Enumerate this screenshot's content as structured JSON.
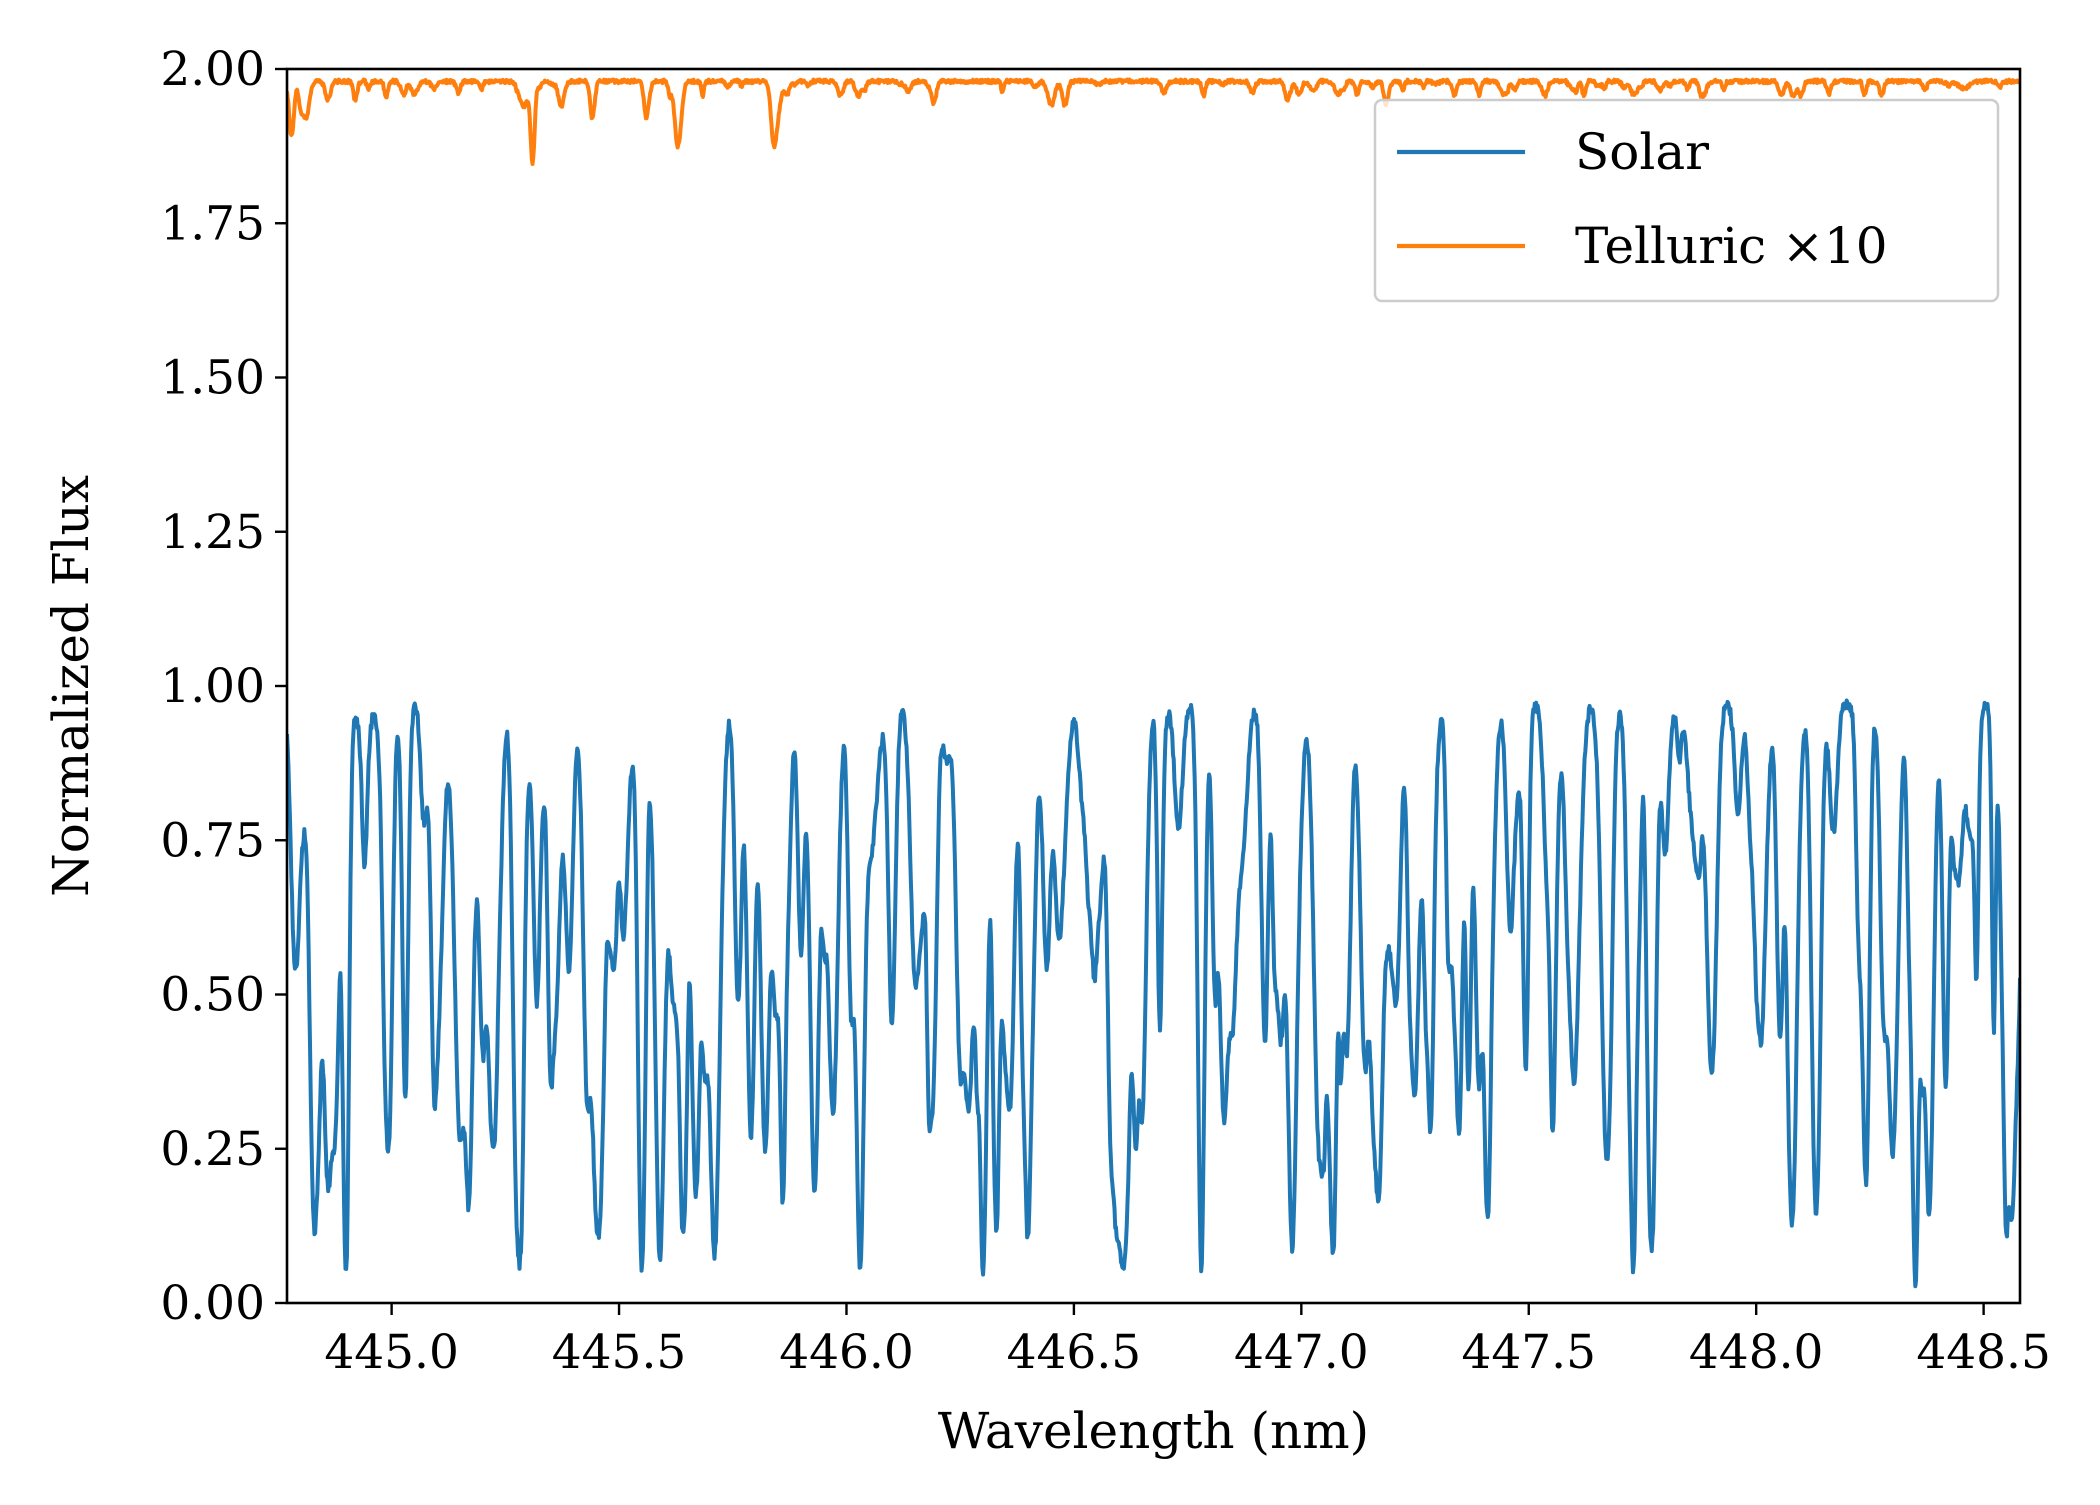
{
  "chart_data": {
    "type": "line",
    "title": "",
    "xlabel": "Wavelength (nm)",
    "ylabel": "Normalized Flux",
    "xlim": [
      444.77,
      448.58
    ],
    "ylim": [
      0.0,
      2.0
    ],
    "xticks": [
      445.0,
      445.5,
      446.0,
      446.5,
      447.0,
      447.5,
      448.0,
      448.5
    ],
    "xtick_labels": [
      "445.0",
      "445.5",
      "446.0",
      "446.5",
      "447.0",
      "447.5",
      "448.0",
      "448.5"
    ],
    "yticks": [
      0.0,
      0.25,
      0.5,
      0.75,
      1.0,
      1.25,
      1.5,
      1.75,
      2.0
    ],
    "ytick_labels": [
      "0.00",
      "0.25",
      "0.50",
      "0.75",
      "1.00",
      "1.25",
      "1.50",
      "1.75",
      "2.00"
    ],
    "grid": false,
    "legend_position": "top-right",
    "series": [
      {
        "name": "Solar",
        "color": "#1f77b4",
        "continuum": 0.97,
        "absorption_lines": [
          [
            444.79,
            0.8
          ],
          [
            444.8,
            0.78
          ],
          [
            444.83,
            0.23
          ],
          [
            444.86,
            0.21
          ],
          [
            444.9,
            0.07
          ],
          [
            444.94,
            0.9
          ],
          [
            444.98,
            0.88
          ],
          [
            445.03,
            0.33
          ],
          [
            445.07,
            0.8
          ],
          [
            445.1,
            0.43
          ],
          [
            445.15,
            0.29
          ],
          [
            445.17,
            0.19
          ],
          [
            445.2,
            0.43
          ],
          [
            445.22,
            0.34
          ],
          [
            445.28,
            0.2
          ],
          [
            445.32,
            0.68
          ],
          [
            445.36,
            0.48
          ],
          [
            445.39,
            0.55
          ],
          [
            445.43,
            0.37
          ],
          [
            445.45,
            0.28
          ],
          [
            445.48,
            0.7
          ],
          [
            445.51,
            0.6
          ],
          [
            445.55,
            0.12
          ],
          [
            445.59,
            0.07
          ],
          [
            445.62,
            0.51
          ],
          [
            445.64,
            0.16
          ],
          [
            445.67,
            0.34
          ],
          [
            445.71,
            0.08
          ],
          [
            445.76,
            0.61
          ],
          [
            445.79,
            0.27
          ],
          [
            445.82,
            0.48
          ],
          [
            445.86,
            0.18
          ],
          [
            445.9,
            0.57
          ],
          [
            445.93,
            0.18
          ],
          [
            445.97,
            0.33
          ],
          [
            446.01,
            0.52
          ],
          [
            446.03,
            0.06
          ],
          [
            446.06,
            0.8
          ],
          [
            446.1,
            0.45
          ],
          [
            446.15,
            0.56
          ],
          [
            446.19,
            0.36
          ],
          [
            446.22,
            0.88
          ],
          [
            446.25,
            0.41
          ],
          [
            446.27,
            0.38
          ],
          [
            446.3,
            0.05
          ],
          [
            446.33,
            0.15
          ],
          [
            446.36,
            0.49
          ],
          [
            446.4,
            0.23
          ],
          [
            446.44,
            0.55
          ],
          [
            446.47,
            0.64
          ],
          [
            446.52,
            0.81
          ],
          [
            446.56,
            0.74
          ],
          [
            446.58,
            0.5
          ],
          [
            446.6,
            0.23
          ],
          [
            446.61,
            0.18
          ],
          [
            446.65,
            0.31
          ],
          [
            446.69,
            0.79
          ],
          [
            446.73,
            0.77
          ],
          [
            446.78,
            0.06
          ],
          [
            446.81,
            0.55
          ],
          [
            446.83,
            0.31
          ],
          [
            446.87,
            0.73
          ],
          [
            446.92,
            0.47
          ],
          [
            446.95,
            0.6
          ],
          [
            446.98,
            0.09
          ],
          [
            447.04,
            0.31
          ],
          [
            447.07,
            0.11
          ],
          [
            447.1,
            0.41
          ],
          [
            447.14,
            0.39
          ],
          [
            447.17,
            0.18
          ],
          [
            447.21,
            0.56
          ],
          [
            447.25,
            0.36
          ],
          [
            447.28,
            0.48
          ],
          [
            447.34,
            0.45
          ],
          [
            447.39,
            0.39
          ],
          [
            447.41,
            0.49
          ],
          [
            447.46,
            0.66
          ],
          [
            447.54,
            0.72
          ],
          [
            447.6,
            0.37
          ],
          [
            447.67,
            0.27
          ],
          [
            447.73,
            0.06
          ],
          [
            447.77,
            0.31
          ],
          [
            447.8,
            0.73
          ],
          [
            447.86,
            0.79
          ],
          [
            447.9,
            0.54
          ],
          [
            447.96,
            0.79
          ],
          [
            448.02,
            0.81
          ],
          [
            448.08,
            0.3
          ],
          [
            448.13,
            0.28
          ],
          [
            448.17,
            0.76
          ],
          [
            448.24,
            0.35
          ],
          [
            448.28,
            0.52
          ],
          [
            448.3,
            0.28
          ],
          [
            448.35,
            0.05
          ],
          [
            448.38,
            0.18
          ],
          [
            448.44,
            0.73
          ],
          [
            448.47,
            0.77
          ],
          [
            448.55,
            0.15
          ],
          [
            448.57,
            0.84
          ]
        ]
      },
      {
        "name": "Telluric ×10",
        "color": "#ff7f0e",
        "continuum": 1.98,
        "absorption_lines": [
          [
            444.78,
            1.89
          ],
          [
            444.8,
            1.95
          ],
          [
            444.81,
            1.94
          ],
          [
            444.86,
            1.95
          ],
          [
            444.92,
            1.95
          ],
          [
            445.05,
            1.96
          ],
          [
            445.29,
            1.94
          ],
          [
            445.31,
            1.85
          ],
          [
            445.56,
            1.92
          ],
          [
            445.63,
            1.88
          ],
          [
            445.84,
            1.89
          ],
          [
            445.85,
            1.94
          ],
          [
            445.87,
            1.96
          ],
          [
            446.45,
            1.95
          ],
          [
            446.48,
            1.94
          ],
          [
            446.97,
            1.95
          ],
          [
            447.08,
            1.96
          ],
          [
            447.73,
            1.96
          ],
          [
            448.16,
            1.96
          ],
          [
            448.45,
            1.97
          ]
        ]
      }
    ]
  }
}
